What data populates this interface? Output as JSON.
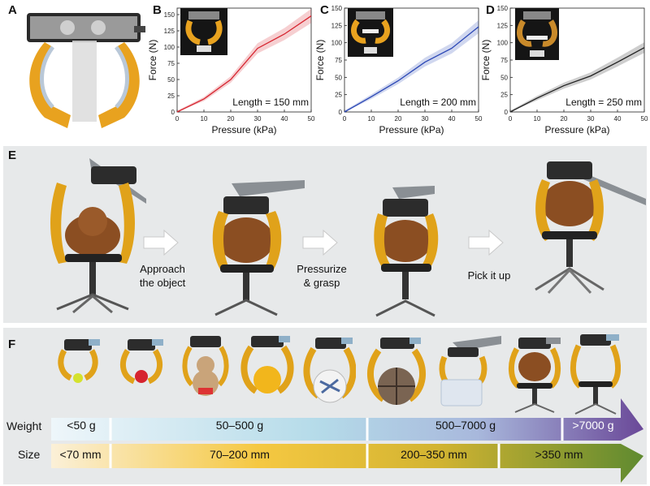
{
  "panels": {
    "A": {
      "letter": "A"
    },
    "B": {
      "letter": "B"
    },
    "C": {
      "letter": "C"
    },
    "D": {
      "letter": "D"
    },
    "E": {
      "letter": "E"
    },
    "F": {
      "letter": "F"
    }
  },
  "colors": {
    "red_series": "#d6242f",
    "blue_series": "#2b47b5",
    "black_series": "#222222",
    "gripper_yellow": "#e8a21f",
    "panel_bg": "#e7e9ea",
    "weight_blue": "#b7dcea",
    "weight_purple": "#6e4c9c",
    "size_yellow": "#f3c63f",
    "size_green": "#6a8b32"
  },
  "chart_data": [
    {
      "type": "line",
      "panel": "B",
      "series": [
        {
          "x": [
            0,
            10,
            20,
            30,
            40,
            50
          ],
          "values": [
            0,
            20,
            50,
            98,
            120,
            148
          ]
        }
      ],
      "xlabel": "Pressure (kPa)",
      "ylabel": "Force (N)",
      "xlim": [
        0,
        50
      ],
      "ylim": [
        0,
        160
      ],
      "xticks": [
        "0",
        "10",
        "20",
        "30",
        "40",
        "50"
      ],
      "yticks": [
        "0",
        "25",
        "50",
        "75",
        "100",
        "125",
        "150"
      ],
      "annotation": "Length = 150 mm",
      "color": "#d6242f"
    },
    {
      "type": "line",
      "panel": "C",
      "series": [
        {
          "x": [
            0,
            10,
            20,
            30,
            40,
            50
          ],
          "values": [
            0,
            22,
            45,
            72,
            92,
            123
          ]
        }
      ],
      "xlabel": "Pressure (kPa)",
      "ylabel": "Force (N)",
      "xlim": [
        0,
        50
      ],
      "ylim": [
        0,
        150
      ],
      "xticks": [
        "0",
        "10",
        "20",
        "30",
        "40",
        "50"
      ],
      "yticks": [
        "0",
        "25",
        "50",
        "75",
        "100",
        "125",
        "150"
      ],
      "annotation": "Length = 200 mm",
      "color": "#2b47b5"
    },
    {
      "type": "line",
      "panel": "D",
      "series": [
        {
          "x": [
            0,
            10,
            20,
            30,
            40,
            50
          ],
          "values": [
            0,
            20,
            38,
            52,
            72,
            93
          ]
        }
      ],
      "xlabel": "Pressure (kPa)",
      "ylabel": "Force (N)",
      "xlim": [
        0,
        50
      ],
      "ylim": [
        0,
        150
      ],
      "xticks": [
        "0",
        "10",
        "20",
        "30",
        "40",
        "50"
      ],
      "yticks": [
        "0",
        "25",
        "50",
        "75",
        "100",
        "125",
        "150"
      ],
      "annotation": "Length = 250 mm",
      "color": "#222222"
    }
  ],
  "panel_E": {
    "steps": [
      "Approach\nthe object",
      "Pressurize\n& grasp",
      "Pick it up"
    ]
  },
  "panel_F": {
    "weight_label": "Weight",
    "size_label": "Size",
    "weight_segments": [
      "<50 g",
      "50–500 g",
      "500–7000 g",
      ">7000 g"
    ],
    "size_segments": [
      "<70 mm",
      "70–200 mm",
      "200–350 mm",
      ">350 mm"
    ]
  }
}
